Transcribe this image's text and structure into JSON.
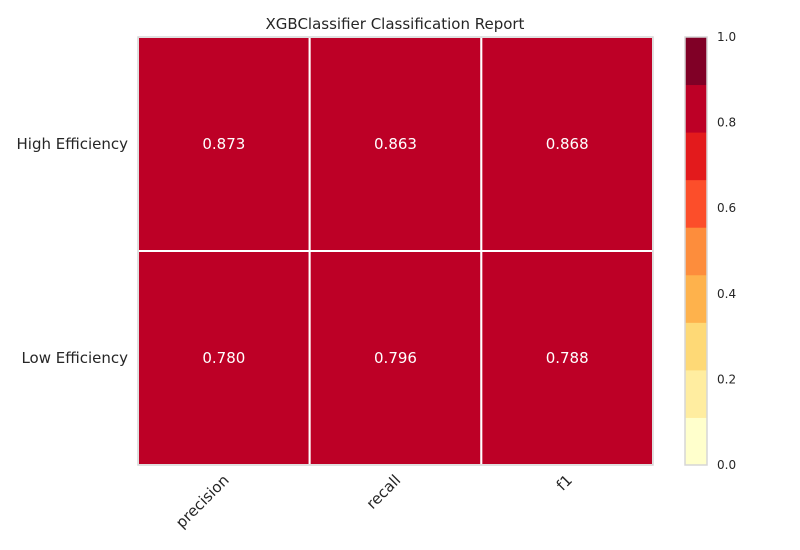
{
  "chart_data": {
    "type": "heatmap",
    "title": "XGBClassifier Classification Report",
    "classes": [
      "High Efficiency",
      "Low Efficiency"
    ],
    "metrics": [
      "precision",
      "recall",
      "f1"
    ],
    "values": [
      [
        0.873,
        0.863,
        0.868
      ],
      [
        0.78,
        0.796,
        0.788
      ]
    ],
    "value_labels": [
      [
        "0.873",
        "0.863",
        "0.868"
      ],
      [
        "0.780",
        "0.796",
        "0.788"
      ]
    ],
    "colorbar": {
      "range": [
        0.0,
        1.0
      ],
      "tick_labels": [
        "0.0",
        "0.2",
        "0.4",
        "0.6",
        "0.8",
        "1.0"
      ],
      "tick_values": [
        0.0,
        0.2,
        0.4,
        0.6,
        0.8,
        1.0
      ],
      "bins": 9,
      "colors": [
        "#ffffcc",
        "#ffeda0",
        "#fed976",
        "#feb24c",
        "#fd8d3c",
        "#fc4e2a",
        "#e31a1c",
        "#bd0026",
        "#800026"
      ]
    },
    "grid": true
  }
}
